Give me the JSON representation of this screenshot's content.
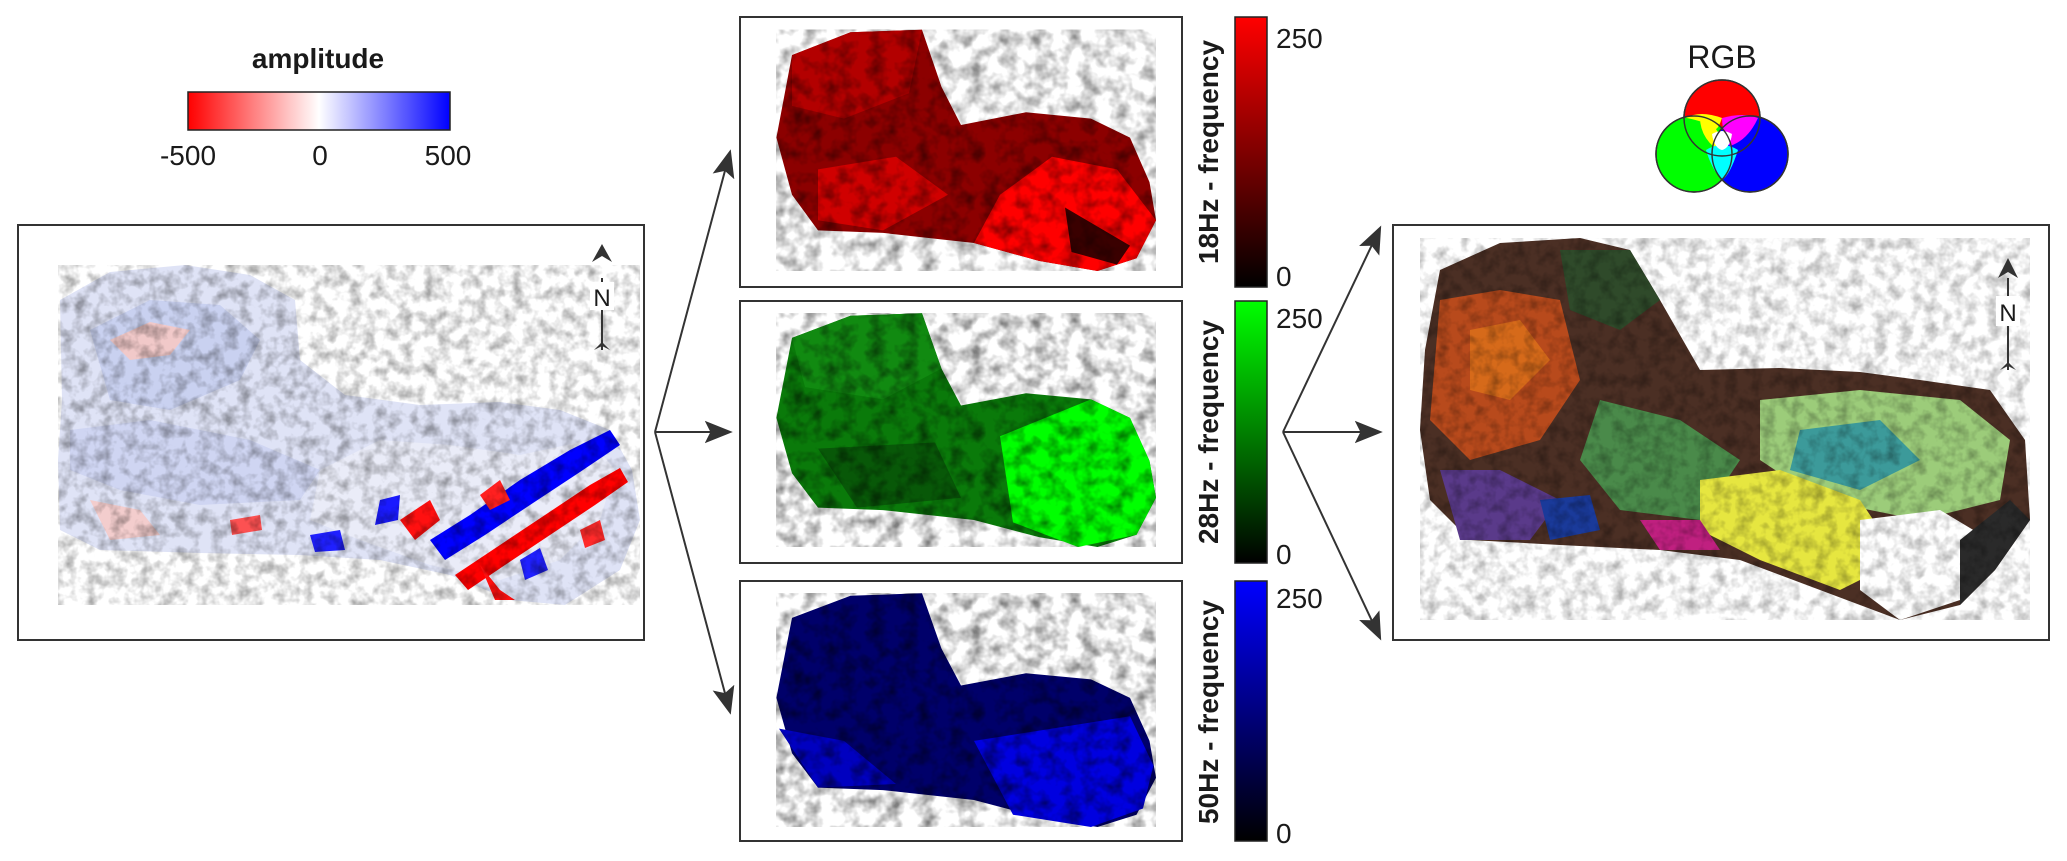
{
  "amplitude_legend": {
    "title": "amplitude",
    "ticks": [
      "-500",
      "0",
      "500"
    ],
    "colors": {
      "low": "#ff0000",
      "mid": "#ffffff",
      "high": "#0000ff"
    }
  },
  "north_label": "N",
  "rgb_legend": {
    "title": "RGB",
    "colors": {
      "red": "#ff0000",
      "green": "#00ff00",
      "blue": "#0000ff",
      "yellow": "#ffff00",
      "magenta": "#ff00ff",
      "cyan": "#00ffff"
    }
  },
  "frequency_panels": [
    {
      "label": "18Hz - frequency",
      "max": "250",
      "min": "0",
      "color": "#ff0000"
    },
    {
      "label": "28Hz - frequency",
      "max": "250",
      "min": "0",
      "color": "#00ff00"
    },
    {
      "label": "50Hz - frequency",
      "max": "250",
      "min": "0",
      "color": "#0000ff"
    }
  ]
}
